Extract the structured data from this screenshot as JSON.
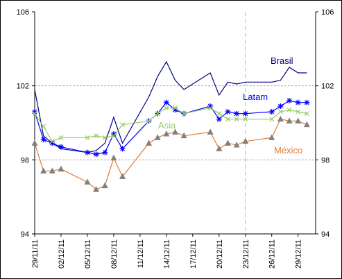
{
  "chart_data": {
    "type": "line",
    "x": [
      "29/11/11",
      "30/11/11",
      "01/12/11",
      "02/12/11",
      "05/12/11",
      "06/12/11",
      "07/12/11",
      "08/12/11",
      "09/12/11",
      "12/12/11",
      "13/12/11",
      "14/12/11",
      "15/12/11",
      "16/12/11",
      "19/12/11",
      "20/12/11",
      "21/12/11",
      "22/12/11",
      "23/12/11",
      "26/12/11",
      "27/12/11",
      "28/12/11",
      "29/12/11",
      "30/12/11"
    ],
    "series": [
      {
        "name": "Brasil",
        "color": "#000080",
        "marker": "none",
        "values": [
          101.8,
          99.3,
          98.9,
          98.6,
          98.4,
          98.5,
          98.9,
          100.3,
          98.9,
          101.4,
          102.5,
          103.3,
          102.3,
          101.8,
          102.7,
          101.5,
          102.2,
          102.1,
          102.2,
          102.2,
          102.3,
          103.0,
          102.7,
          102.7
        ]
      },
      {
        "name": "Latam",
        "color": "#0000ff",
        "marker": "star",
        "marker_color": "#0000ff",
        "values": [
          100.6,
          99.1,
          98.9,
          98.7,
          98.4,
          98.3,
          98.4,
          99.4,
          98.6,
          100.1,
          100.5,
          101.1,
          100.7,
          100.5,
          100.9,
          100.2,
          100.6,
          100.5,
          100.5,
          100.6,
          100.9,
          101.2,
          101.1,
          101.1
        ]
      },
      {
        "name": "Asia",
        "color": "#99cc66",
        "marker": "x",
        "marker_color": "#99cc66",
        "values": [
          100.5,
          99.8,
          99.0,
          99.2,
          99.2,
          99.3,
          99.2,
          99.3,
          99.9,
          100.1,
          100.5,
          100.8,
          100.8,
          100.5,
          100.8,
          100.5,
          100.2,
          100.2,
          100.2,
          100.2,
          100.6,
          100.7,
          100.6,
          100.5
        ]
      },
      {
        "name": "México",
        "color": "#e07b39",
        "marker": "triangle",
        "marker_color": "#808080",
        "values": [
          98.9,
          97.4,
          97.4,
          97.5,
          96.8,
          96.4,
          96.6,
          98.1,
          97.1,
          98.9,
          99.2,
          99.4,
          99.5,
          99.3,
          99.5,
          98.6,
          98.9,
          98.8,
          99.0,
          99.2,
          100.2,
          100.1,
          100.1,
          99.9
        ]
      }
    ],
    "xlim": [
      "29/11/11",
      "31/12/11"
    ],
    "xticks": [
      "29/11/11",
      "02/12/11",
      "05/12/11",
      "08/12/11",
      "11/12/11",
      "14/12/11",
      "17/12/11",
      "20/12/11",
      "23/12/11",
      "26/12/11",
      "29/12/11"
    ],
    "ylim": [
      94,
      106
    ],
    "yticks": [
      94,
      98,
      102,
      106
    ],
    "y2lim": [
      94,
      106
    ],
    "y2ticks": [
      94,
      98,
      102,
      106
    ],
    "grid": true,
    "vline": "23/12/11"
  }
}
